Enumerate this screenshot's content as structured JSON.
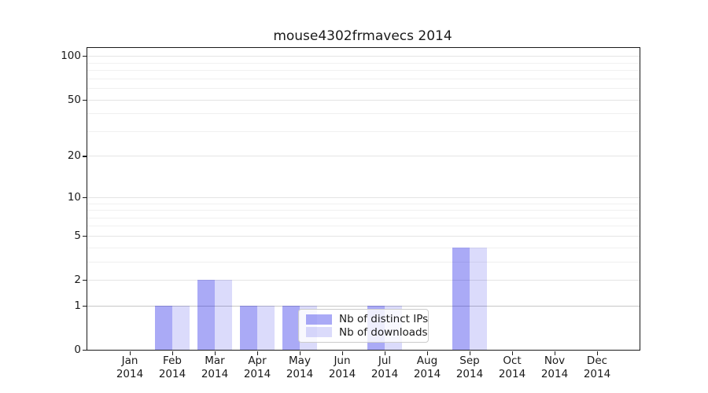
{
  "chart_data": {
    "type": "bar",
    "title": "mouse4302frmavecs 2014",
    "x_tick_year": "2014",
    "categories": [
      "Jan",
      "Feb",
      "Mar",
      "Apr",
      "May",
      "Jun",
      "Jul",
      "Aug",
      "Sep",
      "Oct",
      "Nov",
      "Dec"
    ],
    "series": [
      {
        "name": "Nb of distinct IPs",
        "color": "rgba(10,10,230,0.345)",
        "values": [
          0,
          1,
          2,
          1,
          1,
          0,
          1,
          0,
          4,
          0,
          0,
          0
        ]
      },
      {
        "name": "Nb of downloads",
        "color": "rgba(10,10,230,0.145)",
        "values": [
          0,
          1,
          2,
          1,
          1,
          0,
          1,
          0,
          4,
          0,
          0,
          0
        ]
      }
    ],
    "yscale": "log1p",
    "ylim": [
      0,
      113.6
    ],
    "yticks": [
      0,
      1,
      2,
      5,
      10,
      20,
      50,
      100
    ],
    "minor_yticks": [
      3,
      4,
      6,
      7,
      8,
      9,
      30,
      40,
      60,
      70,
      80,
      90
    ],
    "grid": true,
    "legend_position": "lower center"
  },
  "colors": {
    "axis": "#1a1a1a",
    "grid_minor": "#f0f0f0",
    "grid_major": "#e4e4e4",
    "grid_unit_line": "#c6c6c6",
    "legend_border": "#cccccc",
    "legend_bg": "rgba(255,255,255,0.8)"
  }
}
